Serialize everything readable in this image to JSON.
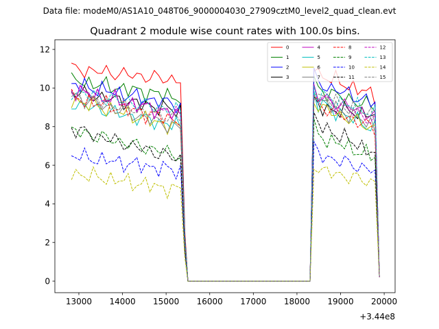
{
  "chart_data": {
    "type": "line",
    "suptitle": "Data file: modeM0/AS1A10_048T06_9000004030_27909cztM0_level2_quad_clean.evt",
    "title": "Quadrant 2 module wise count rates with 100.0s bins.",
    "xlabel": "",
    "ylabel": "",
    "x_offset_label": "+3.44e8",
    "xlim": [
      12450,
      20250
    ],
    "ylim": [
      -0.6,
      12.5
    ],
    "xticks": [
      13000,
      14000,
      15000,
      16000,
      17000,
      18000,
      19000,
      20000
    ],
    "xtick_labels": [
      "13000",
      "14000",
      "15000",
      "16000",
      "17000",
      "18000",
      "19000",
      "20000"
    ],
    "yticks": [
      0,
      2,
      4,
      6,
      8,
      10,
      12
    ],
    "ytick_labels": [
      "0",
      "2",
      "4",
      "6",
      "8",
      "10",
      "12"
    ],
    "legend_location": "top-right",
    "gap": {
      "start": 15550,
      "end": 18300,
      "value": 0
    },
    "segments": [
      {
        "start": 12830,
        "end": 15330,
        "step": 100
      },
      {
        "start": 18390,
        "end": 19790,
        "step": 100
      }
    ],
    "edge_points": {
      "seg1_tail_x": [
        15430,
        15500
      ],
      "seg2_head_x": [
        18300
      ],
      "seg2_tail_x": [
        19890
      ]
    },
    "series": [
      {
        "name": "0",
        "color": "#ff0000",
        "dash": "solid",
        "base1": 11.0,
        "base2": 10.8,
        "slope1": -0.6,
        "slope2": -1.2,
        "phase": 0.3
      },
      {
        "name": "1",
        "color": "#008000",
        "dash": "solid",
        "base1": 10.4,
        "base2": 10.0,
        "slope1": -0.9,
        "slope2": -1.0,
        "phase": 1.1
      },
      {
        "name": "2",
        "color": "#0000ff",
        "dash": "solid",
        "base1": 10.2,
        "base2": 10.3,
        "slope1": -1.1,
        "slope2": -1.1,
        "phase": 2.0
      },
      {
        "name": "3",
        "color": "#000000",
        "dash": "solid",
        "base1": 9.8,
        "base2": 9.0,
        "slope1": -1.0,
        "slope2": -0.4,
        "phase": 2.7
      },
      {
        "name": "4",
        "color": "#bf00bf",
        "dash": "solid",
        "base1": 9.9,
        "base2": 9.6,
        "slope1": -1.3,
        "slope2": -1.0,
        "phase": 3.5
      },
      {
        "name": "5",
        "color": "#00bfbf",
        "dash": "solid",
        "base1": 9.2,
        "base2": 9.3,
        "slope1": -1.2,
        "slope2": -1.4,
        "phase": 4.1
      },
      {
        "name": "6",
        "color": "#bfbf00",
        "dash": "solid",
        "base1": 9.4,
        "base2": 9.1,
        "slope1": -1.5,
        "slope2": -1.2,
        "phase": 4.9
      },
      {
        "name": "7",
        "color": "#808080",
        "dash": "solid",
        "base1": 9.6,
        "base2": 9.5,
        "slope1": -1.7,
        "slope2": -1.5,
        "phase": 5.6
      },
      {
        "name": "8",
        "color": "#ff0000",
        "dash": "dashed",
        "base1": 9.5,
        "base2": 9.2,
        "slope1": -1.2,
        "slope2": -1.3,
        "phase": 0.8
      },
      {
        "name": "9",
        "color": "#008000",
        "dash": "dashed",
        "base1": 7.8,
        "base2": 7.6,
        "slope1": -1.3,
        "slope2": -1.2,
        "phase": 1.6
      },
      {
        "name": "10",
        "color": "#0000ff",
        "dash": "dashed",
        "base1": 6.5,
        "base2": 6.6,
        "slope1": -0.8,
        "slope2": -0.9,
        "phase": 2.4
      },
      {
        "name": "11",
        "color": "#000000",
        "dash": "dashed",
        "base1": 7.9,
        "base2": 8.2,
        "slope1": -1.6,
        "slope2": -1.6,
        "phase": 3.0
      },
      {
        "name": "12",
        "color": "#bf00bf",
        "dash": "dashed",
        "base1": 9.9,
        "base2": 9.6,
        "slope1": -1.3,
        "slope2": -1.3,
        "phase": 3.8
      },
      {
        "name": "13",
        "color": "#00bfbf",
        "dash": "dashed",
        "base1": 9.8,
        "base2": 9.7,
        "slope1": -1.0,
        "slope2": -1.0,
        "phase": 4.4
      },
      {
        "name": "14",
        "color": "#bfbf00",
        "dash": "dashed",
        "base1": 5.6,
        "base2": 5.8,
        "slope1": -0.9,
        "slope2": -0.7,
        "phase": 5.1
      },
      {
        "name": "15",
        "color": "#808080",
        "dash": "dashed",
        "base1": 9.6,
        "base2": 9.7,
        "slope1": -1.2,
        "slope2": -1.2,
        "phase": 5.9
      }
    ]
  }
}
